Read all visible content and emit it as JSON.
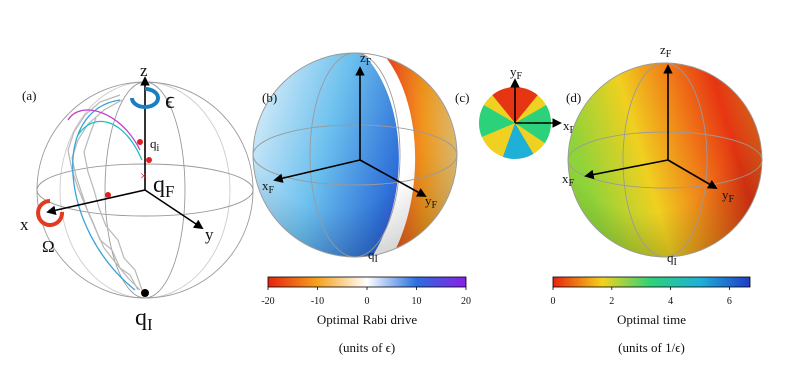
{
  "panel_a": {
    "tag": "(a)",
    "axes": {
      "z": "z",
      "x": "x",
      "y": "y"
    },
    "controls": {
      "epsilon": "ϵ",
      "omega": "Ω"
    },
    "points": {
      "q_i": {
        "base": "q",
        "sub": "i"
      },
      "q_F": {
        "base": "q",
        "sub": "F"
      },
      "q_I": {
        "base": "q",
        "sub": "I"
      }
    }
  },
  "panel_b": {
    "tag": "(b)",
    "axes": {
      "z": {
        "base": "z",
        "sub": "F"
      },
      "x": {
        "base": "x",
        "sub": "F"
      },
      "y": {
        "base": "y",
        "sub": "F"
      }
    },
    "point": {
      "base": "q",
      "sub": "I"
    }
  },
  "panel_c": {
    "tag": "(c)",
    "axes": {
      "y": {
        "base": "y",
        "sub": "F"
      },
      "x": {
        "base": "x",
        "sub": "F"
      }
    }
  },
  "panel_d": {
    "tag": "(d)",
    "axes": {
      "z": {
        "base": "z",
        "sub": "F"
      },
      "x": {
        "base": "x",
        "sub": "F"
      },
      "y": {
        "base": "y",
        "sub": "F"
      }
    },
    "point": {
      "base": "q",
      "sub": "I"
    }
  },
  "colorbars": [
    {
      "title": "Optimal Rabi drive",
      "units": "(units of ϵ)",
      "lim": [
        -20,
        20
      ],
      "ticks": [
        -20,
        -10,
        0,
        10,
        20
      ]
    },
    {
      "title": "Optimal time",
      "units": "(units of 1/ϵ)",
      "lim": [
        0,
        6.7
      ],
      "ticks": [
        0,
        2,
        4,
        6
      ]
    }
  ]
}
